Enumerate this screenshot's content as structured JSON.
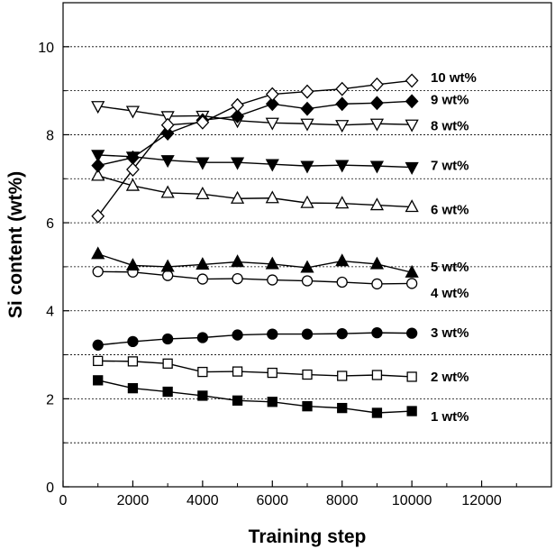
{
  "chart_data": {
    "type": "line",
    "title": "",
    "xlabel": "Training step",
    "ylabel": "Si content (wt%)",
    "xlim": [
      0,
      14000
    ],
    "ylim": [
      0,
      11
    ],
    "x_ticks": [
      0,
      2000,
      4000,
      6000,
      8000,
      10000,
      12000
    ],
    "y_ticks": [
      0,
      2,
      4,
      6,
      8,
      10
    ],
    "grid": "horizontal dotted lines at 1, 2, ..., 10",
    "legend": "none (series labeled at right end of lines)",
    "x": [
      1000,
      2000,
      3000,
      4000,
      5000,
      6000,
      7000,
      8000,
      9000,
      10000
    ],
    "series": [
      {
        "name": "1 wt%",
        "marker": "square",
        "filled": true,
        "values": [
          2.42,
          2.24,
          2.16,
          2.07,
          1.96,
          1.93,
          1.83,
          1.79,
          1.68,
          1.72
        ]
      },
      {
        "name": "2 wt%",
        "marker": "square",
        "filled": false,
        "values": [
          2.86,
          2.85,
          2.8,
          2.61,
          2.62,
          2.59,
          2.55,
          2.52,
          2.54,
          2.5
        ]
      },
      {
        "name": "3 wt%",
        "marker": "circle",
        "filled": true,
        "values": [
          3.22,
          3.3,
          3.36,
          3.39,
          3.45,
          3.47,
          3.47,
          3.48,
          3.5,
          3.49
        ]
      },
      {
        "name": "4 wt%",
        "marker": "circle",
        "filled": false,
        "values": [
          4.89,
          4.88,
          4.8,
          4.72,
          4.73,
          4.7,
          4.68,
          4.65,
          4.61,
          4.62
        ]
      },
      {
        "name": "5 wt%",
        "marker": "triangle-up",
        "filled": true,
        "values": [
          5.29,
          5.03,
          5.0,
          5.05,
          5.11,
          5.06,
          4.98,
          5.13,
          5.06,
          4.87
        ]
      },
      {
        "name": "6 wt%",
        "marker": "triangle-up",
        "filled": false,
        "values": [
          7.07,
          6.84,
          6.68,
          6.65,
          6.55,
          6.56,
          6.45,
          6.44,
          6.4,
          6.36
        ]
      },
      {
        "name": "7 wt%",
        "marker": "triangle-down",
        "filled": true,
        "values": [
          7.54,
          7.5,
          7.42,
          7.37,
          7.37,
          7.33,
          7.29,
          7.31,
          7.29,
          7.26
        ]
      },
      {
        "name": "8 wt%",
        "marker": "triangle-down",
        "filled": false,
        "values": [
          8.65,
          8.54,
          8.42,
          8.43,
          8.32,
          8.27,
          8.25,
          8.22,
          8.25,
          8.23
        ]
      },
      {
        "name": "9 wt%",
        "marker": "diamond",
        "filled": true,
        "values": [
          7.3,
          7.48,
          8.03,
          8.33,
          8.42,
          8.7,
          8.59,
          8.7,
          8.72,
          8.76
        ]
      },
      {
        "name": "10 wt%",
        "marker": "diamond",
        "filled": false,
        "values": [
          6.15,
          7.21,
          8.22,
          8.28,
          8.67,
          8.92,
          8.98,
          9.04,
          9.14,
          9.23
        ]
      }
    ],
    "series_label_positions_y": [
      1.6,
      2.5,
      3.5,
      4.4,
      5.0,
      6.3,
      7.3,
      8.2,
      8.8,
      9.3
    ],
    "colors": {
      "line": "#000000",
      "grid": "#000000",
      "background": "#ffffff"
    }
  }
}
